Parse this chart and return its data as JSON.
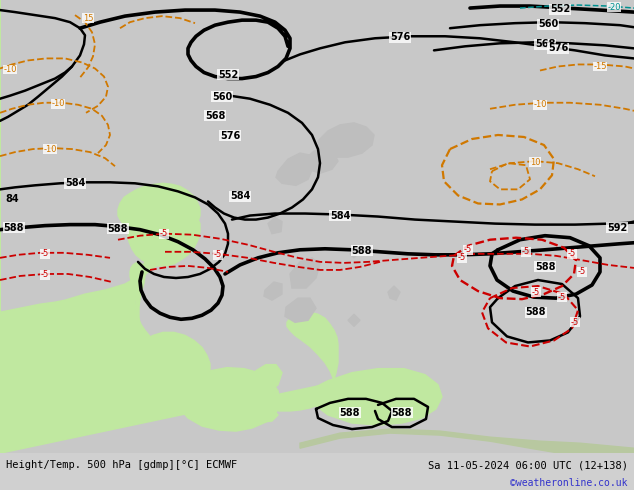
{
  "title_left": "Height/Temp. 500 hPa [gdmp][°C] ECMWF",
  "title_right": "Sa 11-05-2024 06:00 UTC (12+138)",
  "credit": "©weatheronline.co.uk",
  "bg_color": "#d0d0d0",
  "land_green_color": "#c0e8a0",
  "land_gray_color": "#bebebe",
  "contour_black_color": "#000000",
  "contour_orange_color": "#d07800",
  "contour_red_color": "#cc0000",
  "contour_teal_color": "#009090",
  "bottom_bar_color": "#e0e0e0",
  "credit_color": "#3333cc"
}
